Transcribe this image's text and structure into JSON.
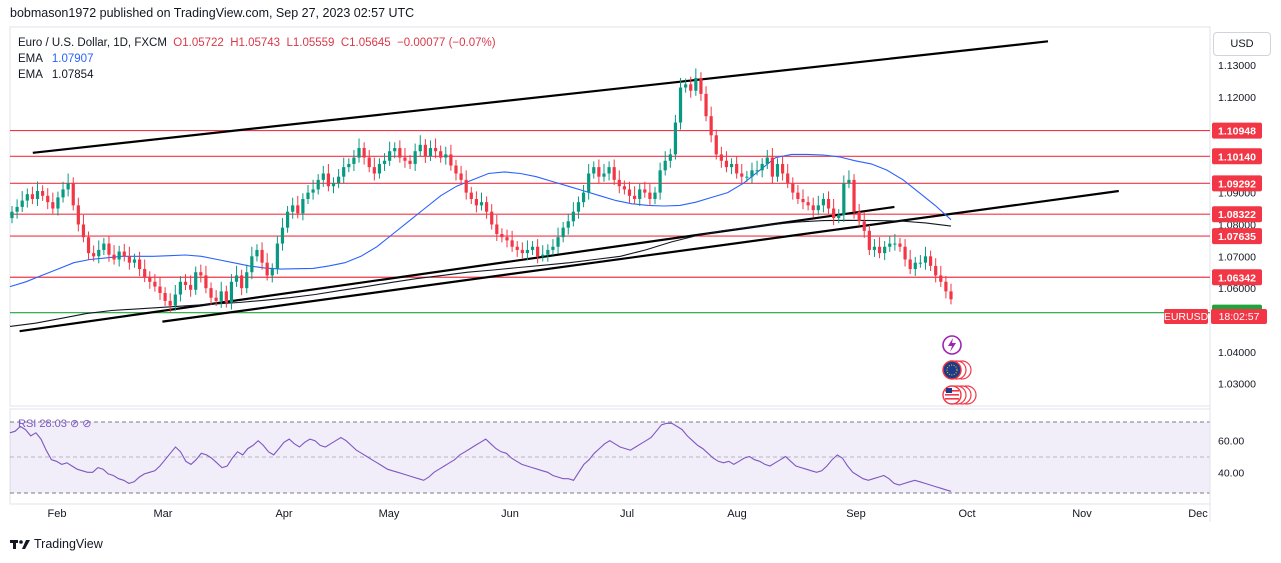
{
  "header": {
    "publisher_line": "bobmason1972 published on TradingView.com, Sep 27, 2023 02:57 UTC"
  },
  "legend": {
    "symbol": "Euro / U.S. Dollar, 1D, FXCM",
    "open": "O1.05722",
    "high": "H1.05743",
    "low": "L1.05559",
    "close": "C1.05645",
    "change": "−0.00077 (−0.07%)",
    "ema1_label": "EMA",
    "ema1_value": "1.07907",
    "ema2_label": "EMA",
    "ema2_value": "1.07854"
  },
  "rsi_legend": "RSI  28.03  ⊘  ⊘",
  "currency_button": "USD",
  "footer": {
    "brand": "TradingView"
  },
  "chart_data": {
    "type": "candlestick",
    "symbol": "EURUSD",
    "x_tick_labels": [
      "Feb",
      "Mar",
      "Apr",
      "May",
      "Jun",
      "Jul",
      "Aug",
      "Sep",
      "Oct",
      "Nov",
      "Dec"
    ],
    "price_axis_ticks": [
      "1.13000",
      "1.12000",
      "1.09000",
      "1.08000",
      "1.07000",
      "1.06000",
      "1.04000",
      "1.03000"
    ],
    "ylim": [
      1.023,
      1.142
    ],
    "level_labels": [
      {
        "value": 1.10948,
        "label": "1.10948",
        "color": "#f23645"
      },
      {
        "value": 1.1014,
        "label": "1.10140",
        "color": "#f23645"
      },
      {
        "value": 1.09292,
        "label": "1.09292",
        "color": "#f23645"
      },
      {
        "value": 1.08322,
        "label": "1.08322",
        "color": "#f23645"
      },
      {
        "value": 1.07635,
        "label": "1.07635",
        "color": "#f23645"
      },
      {
        "value": 1.06342,
        "label": "1.06342",
        "color": "#f23645"
      },
      {
        "value": 1.0523,
        "label": "1.05230",
        "color": "#1fa33b"
      }
    ],
    "last_price_tag": {
      "symbol": "EURUSD",
      "countdown": "18:02:57",
      "value": 1.05645
    },
    "closes": [
      1.084,
      1.0855,
      1.0875,
      1.0895,
      1.088,
      1.0905,
      1.089,
      1.087,
      1.085,
      1.0885,
      1.091,
      1.093,
      1.086,
      1.08,
      1.076,
      1.071,
      1.07,
      1.072,
      1.074,
      1.0705,
      1.069,
      1.0715,
      1.07,
      1.068,
      1.069,
      1.066,
      1.0635,
      1.062,
      1.0605,
      1.0585,
      1.056,
      1.0545,
      1.058,
      1.062,
      1.061,
      1.0595,
      1.065,
      1.064,
      1.06,
      1.057,
      1.056,
      1.059,
      1.0555,
      1.062,
      1.064,
      1.06,
      1.065,
      1.07,
      1.072,
      1.068,
      1.064,
      1.066,
      1.074,
      1.079,
      1.084,
      1.086,
      1.0835,
      1.088,
      1.09,
      1.091,
      1.094,
      1.096,
      1.092,
      1.093,
      1.095,
      1.098,
      1.099,
      1.101,
      1.104,
      1.101,
      1.098,
      1.096,
      1.099,
      1.1,
      1.103,
      1.104,
      1.101,
      1.1,
      1.099,
      1.103,
      1.105,
      1.1015,
      1.104,
      1.103,
      1.101,
      1.102,
      1.0985,
      1.096,
      1.094,
      1.09,
      1.088,
      1.086,
      1.087,
      1.084,
      1.08,
      1.077,
      1.076,
      1.075,
      1.073,
      1.072,
      1.071,
      1.072,
      1.073,
      1.07,
      1.0705,
      1.072,
      1.073,
      1.076,
      1.079,
      1.081,
      1.084,
      1.087,
      1.09,
      1.096,
      1.098,
      1.095,
      1.096,
      1.098,
      1.094,
      1.092,
      1.091,
      1.089,
      1.088,
      1.091,
      1.09,
      1.088,
      1.09,
      1.097,
      1.1,
      1.102,
      1.112,
      1.123,
      1.124,
      1.122,
      1.126,
      1.121,
      1.114,
      1.108,
      1.102,
      1.1,
      1.098,
      1.099,
      1.096,
      1.095,
      1.095,
      1.097,
      1.097,
      1.099,
      1.101,
      1.095,
      1.099,
      1.096,
      1.093,
      1.09,
      1.088,
      1.087,
      1.086,
      1.0845,
      1.086,
      1.088,
      1.085,
      1.082,
      1.083,
      1.093,
      1.094,
      1.084,
      1.081,
      1.078,
      1.072,
      1.073,
      1.071,
      1.073,
      1.074,
      1.074,
      1.073,
      1.069,
      1.066,
      1.068,
      1.068,
      1.07,
      1.067,
      1.064,
      1.062,
      1.059,
      1.0565
    ],
    "ema_fast": [
      1.0605,
      1.062,
      1.064,
      1.066,
      1.068,
      1.069,
      1.0695,
      1.07,
      1.07,
      1.07,
      1.0702,
      1.0704,
      1.07,
      1.069,
      1.068,
      1.067,
      1.0663,
      1.066,
      1.0661,
      1.0662,
      1.067,
      1.068,
      1.07,
      1.073,
      1.077,
      1.081,
      1.085,
      1.089,
      1.092,
      1.094,
      1.096,
      1.0965,
      1.096,
      1.095,
      1.0935,
      1.092,
      1.0905,
      1.089,
      1.0875,
      1.0865,
      1.086,
      1.0858,
      1.086,
      1.087,
      1.0885,
      1.09,
      1.093,
      1.097,
      1.101,
      1.102,
      1.102,
      1.1018,
      1.1012,
      1.1,
      1.099,
      1.097,
      1.094,
      1.09,
      1.086,
      1.0815
    ],
    "ema_slow": [
      1.048,
      1.049,
      1.0505,
      1.052,
      1.053,
      1.0535,
      1.054,
      1.0545,
      1.055,
      1.0555,
      1.0562,
      1.057,
      1.058,
      1.0593,
      1.0605,
      1.0618,
      1.063,
      1.064,
      1.065,
      1.0657,
      1.0665,
      1.0672,
      1.068,
      1.069,
      1.07,
      1.072,
      1.0745,
      1.0765,
      1.078,
      1.079,
      1.08,
      1.0808,
      1.0812,
      1.0813,
      1.0812,
      1.0811,
      1.0805,
      1.0795
    ],
    "trendlines": [
      {
        "name": "upper-channel",
        "from": [
          1.1025,
          0.019
        ],
        "to": [
          1.1375,
          0.865
        ]
      },
      {
        "name": "lower-channel",
        "from": [
          1.0495,
          0.127
        ],
        "to": [
          1.0905,
          0.924
        ]
      },
      {
        "name": "support-line",
        "from": [
          1.0465,
          0.008
        ],
        "to": [
          1.0855,
          0.737
        ]
      }
    ],
    "rsi": {
      "ticks": [
        "60.00",
        "40.00"
      ],
      "ylim": [
        20,
        80
      ],
      "upper": 70,
      "mid": 50,
      "lower": 30,
      "values": [
        65,
        66,
        69,
        67,
        63,
        65,
        61,
        54,
        48,
        47,
        45,
        46,
        44,
        42,
        41,
        40,
        40,
        43,
        42,
        39,
        38,
        36,
        35,
        33,
        34,
        37,
        39,
        40,
        41,
        44,
        48,
        52,
        56,
        53,
        47,
        45,
        48,
        52,
        51,
        49,
        46,
        43,
        44,
        49,
        53,
        51,
        55,
        57,
        60,
        57,
        53,
        51,
        55,
        59,
        61,
        58,
        56,
        59,
        61,
        60,
        57,
        56,
        58,
        60,
        62,
        60,
        57,
        54,
        52,
        50,
        48,
        46,
        44,
        42,
        41,
        40,
        39,
        38,
        37,
        36,
        35,
        37,
        40,
        42,
        44,
        46,
        48,
        51,
        53,
        55,
        57,
        59,
        61,
        58,
        55,
        53,
        52,
        49,
        47,
        45,
        44,
        43,
        42,
        41,
        40,
        38,
        37,
        36,
        36,
        35,
        40,
        45,
        48,
        52,
        55,
        58,
        60,
        58,
        56,
        55,
        54,
        56,
        58,
        60,
        62,
        66,
        70,
        71,
        71,
        69,
        67,
        63,
        60,
        57,
        55,
        52,
        49,
        47,
        46,
        47,
        45,
        47,
        49,
        50,
        48,
        47,
        45,
        44,
        46,
        48,
        50,
        47,
        44,
        43,
        42,
        41,
        40,
        41,
        44,
        48,
        51,
        49,
        44,
        40,
        38,
        36,
        35,
        36,
        37,
        38,
        36,
        33,
        32,
        33,
        34,
        35,
        34,
        33,
        32,
        31,
        30,
        29,
        28
      ]
    }
  }
}
